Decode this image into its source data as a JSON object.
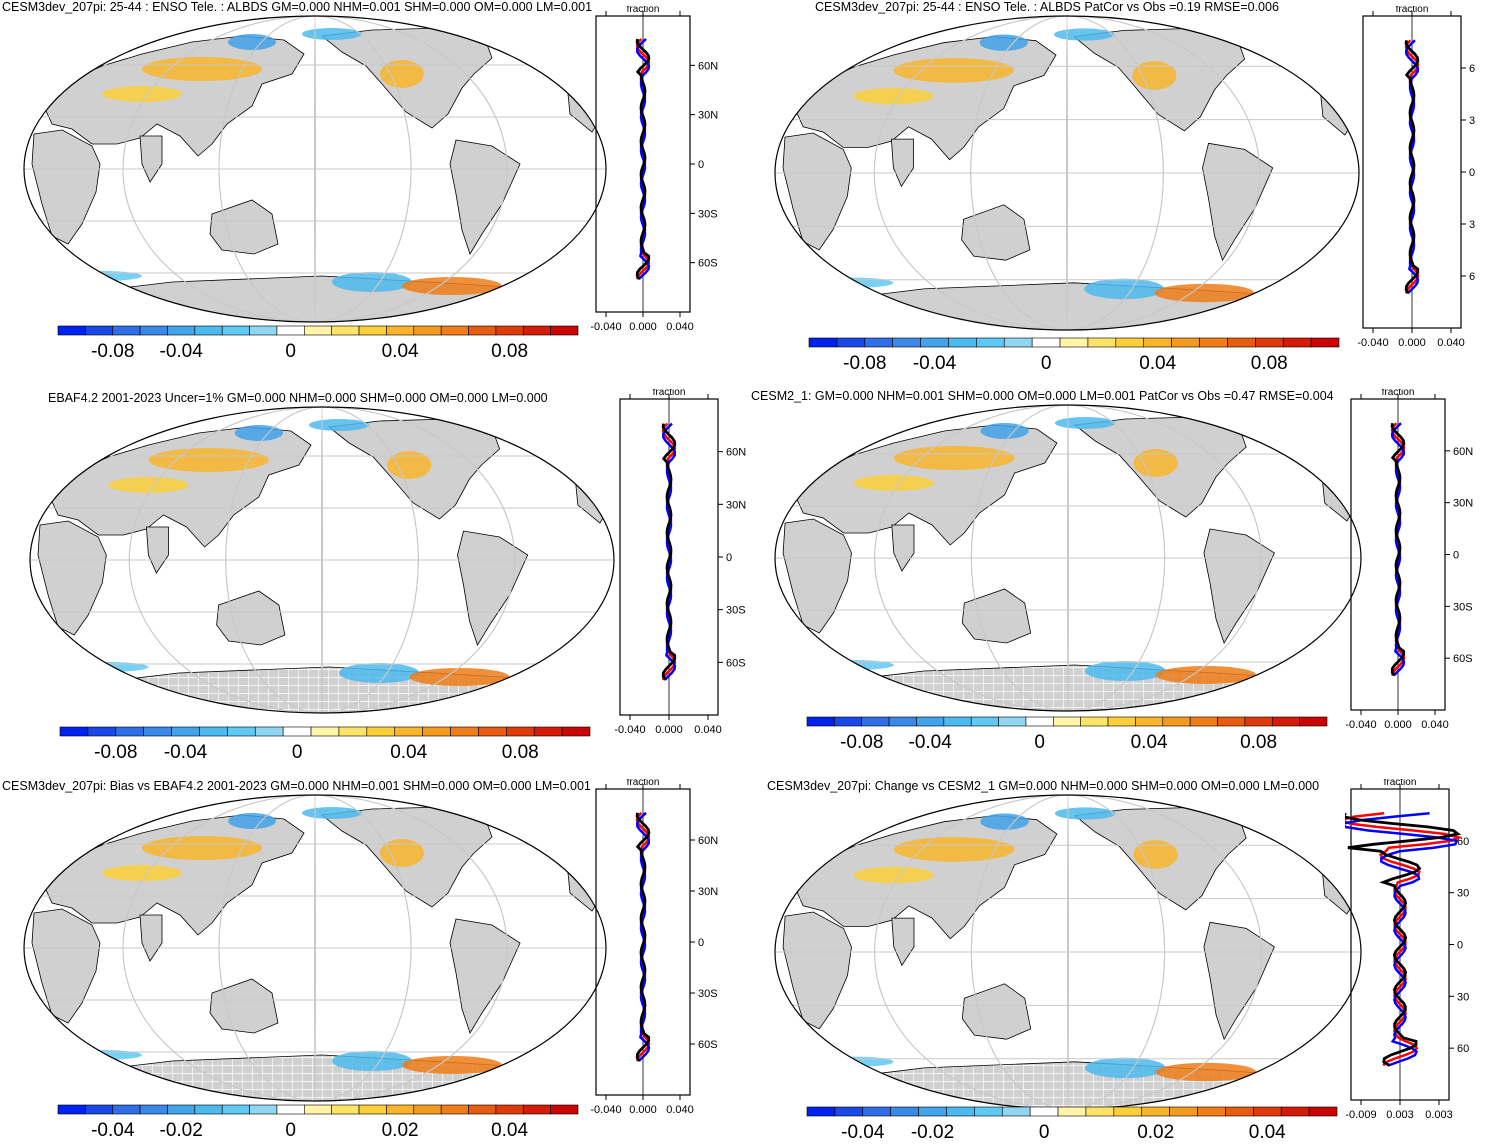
{
  "colors": {
    "land": "#d0d0d0",
    "ocean": "#ffffff",
    "grid": "#c8c8c8",
    "coast": "#000000",
    "ant_hatch": "#ffffff",
    "zonal_model": "#ff0000",
    "zonal_obs": "#0000ff",
    "zonal_black": "#000000",
    "colorbar": [
      "#0022ee",
      "#1a48e6",
      "#2e6ee6",
      "#3a88e8",
      "#42a2ea",
      "#4cbaee",
      "#5ec9f2",
      "#90d6f2",
      "#ffffff",
      "#fff4a8",
      "#fde467",
      "#fbcf3a",
      "#f8b52c",
      "#f49a1f",
      "#ef7d18",
      "#e85c12",
      "#df3a0c",
      "#d41a08",
      "#c80404"
    ]
  },
  "panels": [
    {
      "title": "CESM3dev_207pi: 25-44 : ENSO Tele. : ALBDS GM=0.000 NHM=0.001 SHM=0.000 OM=0.000 LM=0.001",
      "cbar_ticks": [
        "-0.08",
        "-0.04",
        "0",
        "0.04",
        "0.08"
      ],
      "zonal_ticks": [
        "-0.040",
        "0.000",
        "0.040"
      ],
      "zonal_label": "fraction",
      "lat_labels": [
        "60N",
        "30N",
        "0",
        "30S",
        "60S"
      ],
      "antarctic_hatch": false
    },
    {
      "title": "CESM3dev_207pi: 25-44 : ENSO Tele. : ALBDS PatCor vs Obs =0.19 RMSE=0.006",
      "cbar_ticks": [
        "-0.08",
        "-0.04",
        "0",
        "0.04",
        "0.08"
      ],
      "zonal_ticks": [
        "-0.040",
        "0.000",
        "0.040"
      ],
      "zonal_label": "fraction",
      "lat_labels": [
        "6",
        "3",
        "0",
        "3",
        "6"
      ],
      "antarctic_hatch": false
    },
    {
      "title": "EBAF4.2 2001-2023 Uncer=1% GM=0.000 NHM=0.000 SHM=0.000 OM=0.000 LM=0.000",
      "cbar_ticks": [
        "-0.08",
        "-0.04",
        "0",
        "0.04",
        "0.08"
      ],
      "zonal_ticks": [
        "-0.040",
        "0.000",
        "0.040"
      ],
      "zonal_label": "fraction",
      "lat_labels": [
        "60N",
        "30N",
        "0",
        "30S",
        "60S"
      ],
      "antarctic_hatch": true
    },
    {
      "title": "CESM2_1: GM=0.000 NHM=0.001 SHM=0.000 OM=0.000 LM=0.001 PatCor vs Obs =0.47 RMSE=0.004",
      "cbar_ticks": [
        "-0.08",
        "-0.04",
        "0",
        "0.04",
        "0.08"
      ],
      "zonal_ticks": [
        "-0.040",
        "0.000",
        "0.040"
      ],
      "zonal_label": "fraction",
      "lat_labels": [
        "60N",
        "30N",
        "0",
        "30S",
        "60S"
      ],
      "antarctic_hatch": true
    },
    {
      "title": "CESM3dev_207pi: Bias vs EBAF4.2 2001-2023 GM=0.000 NHM=0.001 SHM=0.000 OM=0.000 LM=0.001",
      "cbar_ticks": [
        "-0.04",
        "-0.02",
        "0",
        "0.02",
        "0.04"
      ],
      "zonal_ticks": [
        "-0.040",
        "0.000",
        "0.040"
      ],
      "zonal_label": "fraction",
      "lat_labels": [
        "60N",
        "30N",
        "0",
        "30S",
        "60S"
      ],
      "antarctic_hatch": true
    },
    {
      "title": "CESM3dev_207pi: Change vs CESM2_1 GM=0.000 NHM=0.000 SHM=0.000 OM=0.000 LM=0.000",
      "cbar_ticks": [
        "-0.04",
        "-0.02",
        "0",
        "0.02",
        "0.04"
      ],
      "zonal_ticks": [
        "-0.009",
        "0.003",
        "0.003"
      ],
      "zonal_label": "fraction",
      "lat_labels": [
        "60",
        "30",
        "0",
        "30",
        "60"
      ],
      "antarctic_hatch": true
    }
  ]
}
